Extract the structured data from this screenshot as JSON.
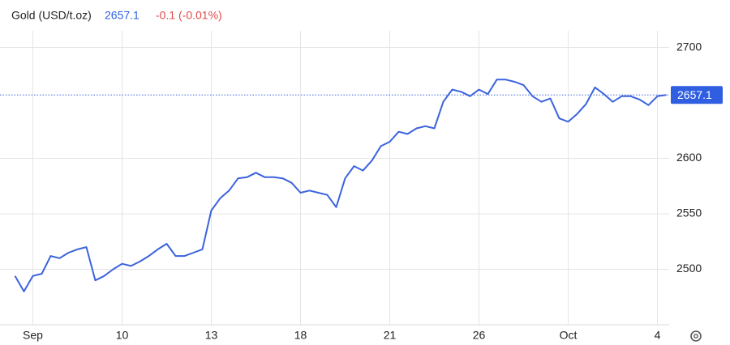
{
  "chart_data": {
    "type": "line",
    "title": "Gold (USD/t.oz)",
    "last_price": 2657.1,
    "change_label": "-0.1 (-0.01%)",
    "categories": [
      null,
      null,
      "Sep",
      null,
      null,
      null,
      null,
      null,
      null,
      null,
      null,
      null,
      "10",
      null,
      null,
      null,
      null,
      null,
      null,
      null,
      null,
      null,
      "13",
      null,
      null,
      null,
      null,
      null,
      null,
      null,
      null,
      null,
      "18",
      null,
      null,
      null,
      null,
      null,
      null,
      null,
      null,
      null,
      "21",
      null,
      null,
      null,
      null,
      null,
      null,
      null,
      null,
      null,
      "26",
      null,
      null,
      null,
      null,
      null,
      null,
      null,
      null,
      null,
      "Oct",
      null,
      null,
      null,
      null,
      null,
      null,
      null,
      null,
      null,
      "4",
      null
    ],
    "series": [
      {
        "name": "Gold",
        "color": "#3b63dd",
        "values": [
          2494,
          2480,
          2494,
          2496,
          2512,
          2510,
          2515,
          2518,
          2520,
          2490,
          2494,
          2500,
          2505,
          2503,
          2507,
          2512,
          2518,
          2523,
          2512,
          2512,
          2515,
          2518,
          2553,
          2564,
          2571,
          2582,
          2583,
          2587,
          2583,
          2583,
          2582,
          2578,
          2569,
          2571,
          2569,
          2567,
          2556,
          2582,
          2593,
          2589,
          2598,
          2611,
          2615,
          2624,
          2622,
          2627,
          2629,
          2627,
          2651,
          2662,
          2660,
          2656,
          2662,
          2658,
          2671,
          2671,
          2669,
          2666,
          2656,
          2651,
          2654,
          2636,
          2633,
          2640,
          2649,
          2664,
          2658,
          2651,
          2656,
          2656,
          2653,
          2648,
          2656,
          2657.1
        ]
      }
    ],
    "ylim": [
      2450,
      2715
    ],
    "yticks": [
      2500,
      2550,
      2600,
      2700
    ],
    "grid": true
  }
}
